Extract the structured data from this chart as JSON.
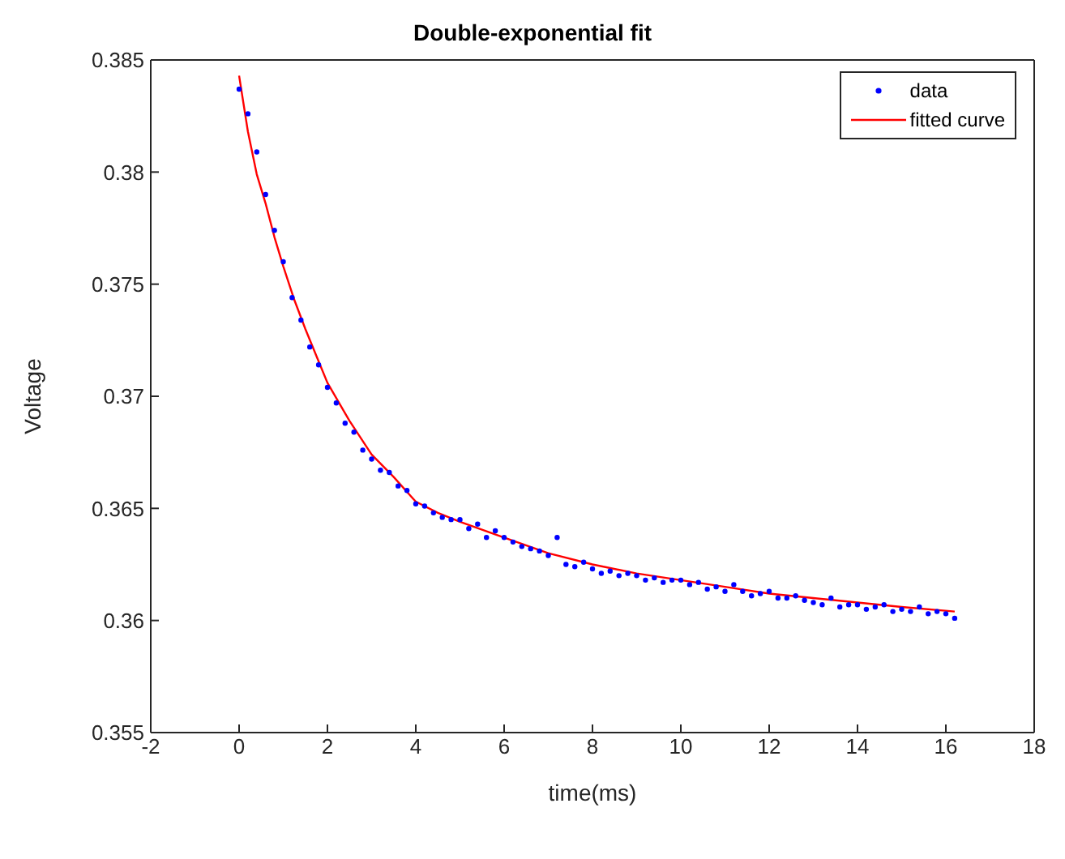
{
  "chart_data": {
    "type": "scatter",
    "title": "Double-exponential fit",
    "xlabel": "time(ms)",
    "ylabel": "Voltage",
    "xlim": [
      -2,
      18
    ],
    "xticks": [
      -2,
      0,
      2,
      4,
      6,
      8,
      10,
      12,
      14,
      16,
      18
    ],
    "ylim": [
      0.355,
      0.385
    ],
    "yticks": [
      0.355,
      0.36,
      0.365,
      0.37,
      0.375,
      0.38,
      0.385
    ],
    "grid": false,
    "legend": "top right",
    "series": [
      {
        "name": "data",
        "marker": "circle",
        "color": "#0000ff",
        "x": [
          0,
          0.2,
          0.4,
          0.6,
          0.8,
          1,
          1.2,
          1.4,
          1.6,
          1.8,
          2,
          2.2,
          2.4,
          2.6,
          2.8,
          3,
          3.2,
          3.4,
          3.6,
          3.8,
          4,
          4.2,
          4.4,
          4.6,
          4.8,
          5,
          5.2,
          5.4,
          5.6,
          5.8,
          6,
          6.2,
          6.4,
          6.6,
          6.8,
          7,
          7.2,
          7.4,
          7.6,
          7.8,
          8,
          8.2,
          8.4,
          8.6,
          8.8,
          9,
          9.2,
          9.4,
          9.6,
          9.8,
          10,
          10.2,
          10.4,
          10.6,
          10.8,
          11,
          11.2,
          11.4,
          11.6,
          11.8,
          12,
          12.2,
          12.4,
          12.6,
          12.8,
          13,
          13.2,
          13.4,
          13.6,
          13.8,
          14,
          14.2,
          14.4,
          14.6,
          14.8,
          15,
          15.2,
          15.4,
          15.6,
          15.8,
          16,
          16.2
        ],
        "values": [
          0.3837,
          0.3826,
          0.3809,
          0.379,
          0.3774,
          0.376,
          0.3744,
          0.3734,
          0.3722,
          0.3714,
          0.3704,
          0.3697,
          0.3688,
          0.3684,
          0.3676,
          0.3672,
          0.3667,
          0.3666,
          0.366,
          0.3658,
          0.3652,
          0.3651,
          0.3648,
          0.3646,
          0.3645,
          0.3645,
          0.3641,
          0.3643,
          0.3637,
          0.364,
          0.3637,
          0.3635,
          0.3633,
          0.3632,
          0.3631,
          0.3629,
          0.3637,
          0.3625,
          0.3624,
          0.3626,
          0.3623,
          0.3621,
          0.3622,
          0.362,
          0.3621,
          0.362,
          0.3618,
          0.3619,
          0.3617,
          0.3618,
          0.3618,
          0.3616,
          0.3617,
          0.3614,
          0.3615,
          0.3613,
          0.3616,
          0.3613,
          0.3611,
          0.3612,
          0.3613,
          0.361,
          0.361,
          0.3611,
          0.3609,
          0.3608,
          0.3607,
          0.361,
          0.3606,
          0.3607,
          0.3607,
          0.3605,
          0.3606,
          0.3607,
          0.3604,
          0.3605,
          0.3604,
          0.3606,
          0.3603,
          0.3604,
          0.3603,
          0.3601
        ]
      },
      {
        "name": "fitted curve",
        "type": "line",
        "color": "#ff0000",
        "x": [
          0,
          0.2,
          0.4,
          0.6,
          0.8,
          1,
          1.25,
          1.5,
          1.75,
          2,
          2.5,
          3,
          3.5,
          4,
          4.5,
          5,
          6,
          7,
          8,
          9,
          10,
          11,
          12,
          13,
          14,
          15,
          16.2
        ],
        "values": [
          0.3843,
          0.3818,
          0.3799,
          0.3786,
          0.3771,
          0.3758,
          0.3743,
          0.373,
          0.3718,
          0.3706,
          0.3689,
          0.3674,
          0.3664,
          0.3653,
          0.3648,
          0.3644,
          0.3637,
          0.363,
          0.3625,
          0.3621,
          0.3618,
          0.3615,
          0.3612,
          0.361,
          0.3608,
          0.3606,
          0.3604
        ]
      }
    ]
  }
}
